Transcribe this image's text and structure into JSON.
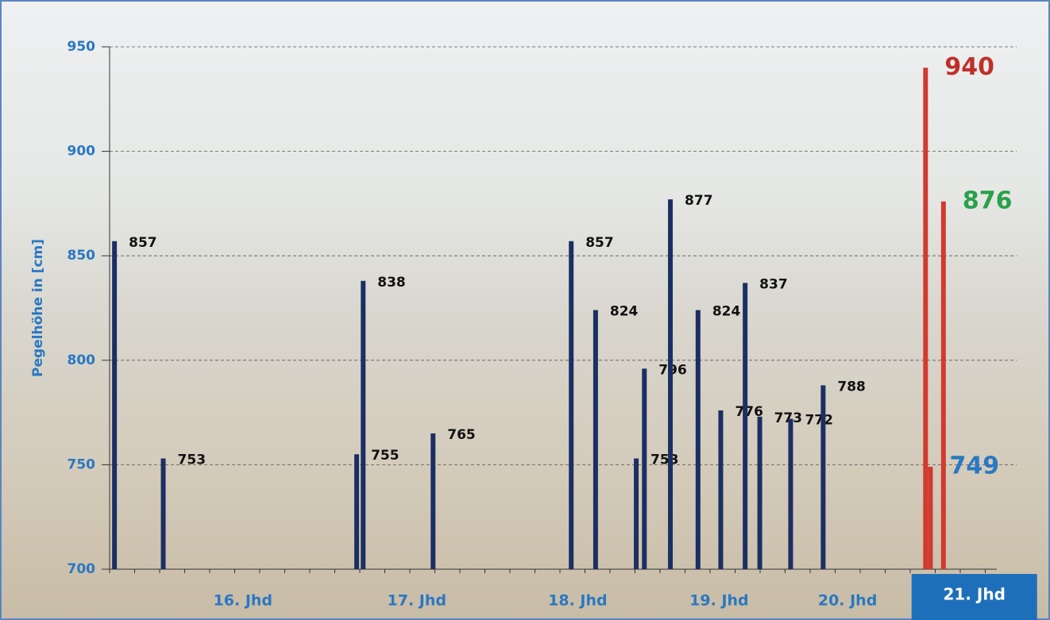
{
  "chart_data": {
    "type": "bar",
    "y_label": "Pegelhöhe in [cm]",
    "x": [
      1503,
      1533,
      1652,
      1656,
      1699,
      1784,
      1799,
      1824,
      1829,
      1845,
      1862,
      1876,
      1891,
      1900,
      1919,
      1939,
      2002,
      2005,
      2013
    ],
    "values": [
      857,
      753,
      755,
      838,
      765,
      857,
      824,
      753,
      796,
      877,
      824,
      776,
      837,
      773,
      772,
      788,
      940,
      749,
      876
    ],
    "colors": [
      "#1b2f63",
      "#1b2f63",
      "#1b2f63",
      "#1b2f63",
      "#1b2f63",
      "#1b2f63",
      "#1b2f63",
      "#1b2f63",
      "#1b2f63",
      "#1b2f63",
      "#1b2f63",
      "#1b2f63",
      "#1b2f63",
      "#1b2f63",
      "#1b2f63",
      "#1b2f63",
      "#d23a2f",
      "#d23a2f",
      "#d23a2f"
    ],
    "label_colors": [
      "#111111",
      "#111111",
      "#111111",
      "#111111",
      "#111111",
      "#111111",
      "#111111",
      "#111111",
      "#111111",
      "#111111",
      "#111111",
      "#111111",
      "#111111",
      "#111111",
      "#111111",
      "#111111",
      "#c0302a",
      "#2a78c2",
      "#2aa04a"
    ],
    "xlim": [
      1500,
      2081
    ],
    "xticks": [
      {
        "value": 1582,
        "label": "16. Jhd"
      },
      {
        "value": 1689,
        "label": "17. Jhd"
      },
      {
        "value": 1788,
        "label": "18. Jhd"
      },
      {
        "value": 1875,
        "label": "19. Jhd"
      },
      {
        "value": 1954,
        "label": "20. Jhd"
      },
      {
        "value": 2032,
        "label": "21. Jhd"
      }
    ],
    "highlight_xtick": 5,
    "ylim": [
      700,
      950
    ],
    "yticks": [
      700,
      750,
      800,
      850,
      900,
      950
    ],
    "grid": true
  }
}
